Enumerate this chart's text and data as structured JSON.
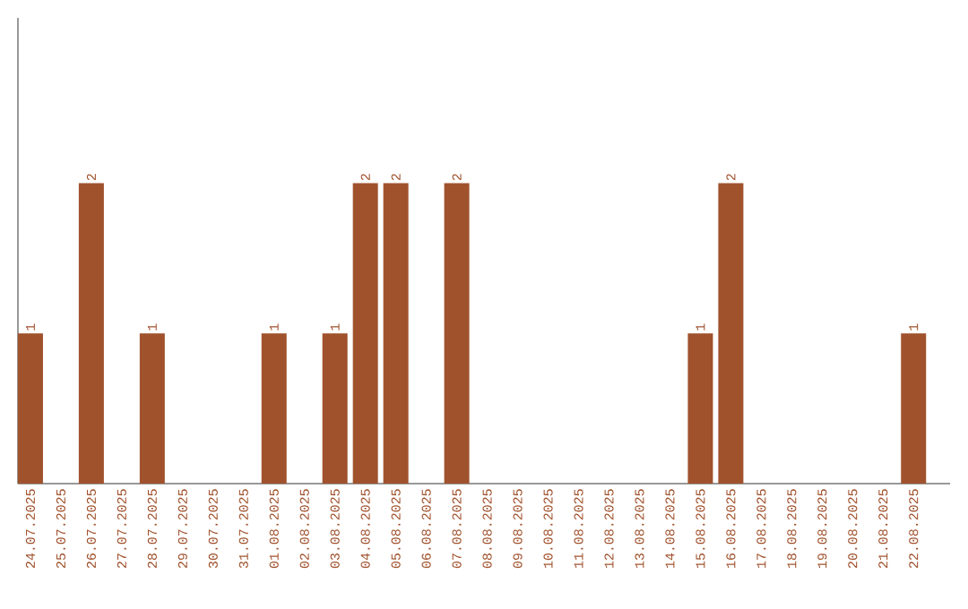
{
  "chart_data": {
    "type": "bar",
    "categories": [
      "24.07.2025",
      "25.07.2025",
      "26.07.2025",
      "27.07.2025",
      "28.07.2025",
      "29.07.2025",
      "30.07.2025",
      "31.07.2025",
      "01.08.2025",
      "02.08.2025",
      "03.08.2025",
      "04.08.2025",
      "05.08.2025",
      "06.08.2025",
      "07.08.2025",
      "08.08.2025",
      "09.08.2025",
      "10.08.2025",
      "11.08.2025",
      "12.08.2025",
      "13.08.2025",
      "14.08.2025",
      "15.08.2025",
      "16.08.2025",
      "17.08.2025",
      "18.08.2025",
      "19.08.2025",
      "20.08.2025",
      "21.08.2025",
      "22.08.2025"
    ],
    "values": [
      1,
      0,
      2,
      0,
      1,
      0,
      0,
      0,
      1,
      0,
      1,
      2,
      2,
      0,
      2,
      0,
      0,
      0,
      0,
      0,
      0,
      0,
      1,
      2,
      0,
      0,
      0,
      0,
      0,
      1
    ],
    "value_labels": [
      "1",
      null,
      "2",
      null,
      "1",
      null,
      null,
      null,
      "1",
      null,
      "1",
      "2",
      "2",
      null,
      "2",
      null,
      null,
      null,
      null,
      null,
      null,
      null,
      "1",
      "2",
      null,
      null,
      null,
      null,
      null,
      "1"
    ],
    "color": "#a0522d",
    "ylim": [
      0,
      3.1
    ],
    "tick_labels": "x"
  }
}
